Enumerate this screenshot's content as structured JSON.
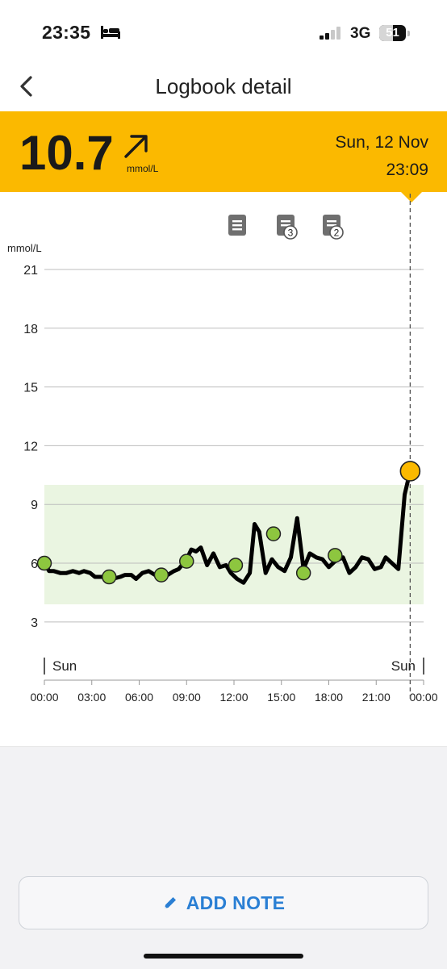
{
  "status_bar": {
    "time": "23:35",
    "network": "3G",
    "battery_level": "51",
    "battery_fraction": 0.51,
    "icons": [
      "bed-icon",
      "cellular-signal-icon",
      "battery-icon"
    ]
  },
  "nav": {
    "back_icon": "chevron-left-icon",
    "title": "Logbook detail"
  },
  "reading": {
    "value": "10.7",
    "unit": "mmol/L",
    "trend_icon": "arrow-up-right-icon",
    "date": "Sun, 12 Nov",
    "time": "23:09",
    "accent_color": "#fbb900"
  },
  "notes": [
    {
      "icon": "note-icon",
      "count": ""
    },
    {
      "icon": "note-icon",
      "count": "3"
    },
    {
      "icon": "note-icon",
      "count": "2"
    }
  ],
  "chart_data": {
    "type": "line",
    "ylabel": "mmol/L",
    "ylim": [
      0,
      22.5
    ],
    "xlim": [
      0,
      24
    ],
    "y_ticks": [
      "3",
      "6",
      "9",
      "12",
      "15",
      "18",
      "21"
    ],
    "x_ticks": [
      "00:00",
      "03:00",
      "06:00",
      "09:00",
      "12:00",
      "15:00",
      "18:00",
      "21:00",
      "00:00"
    ],
    "day_labels": {
      "start": "Sun",
      "end": "Sun"
    },
    "target_range": [
      3.9,
      10.0
    ],
    "target_range_color": "#eaf5e1",
    "line_color": "#000000",
    "current_marker": {
      "x": 23.15,
      "y": 10.7,
      "color": "#fbb900"
    },
    "series": [
      {
        "x": [
          0.0,
          0.3,
          0.6,
          1.0,
          1.4,
          1.8,
          2.2,
          2.5,
          2.9,
          3.2,
          3.6,
          4.0,
          4.3,
          4.8,
          5.1,
          5.5,
          5.8,
          6.2,
          6.6,
          7.0,
          7.4,
          7.8,
          8.2,
          8.5,
          9.0,
          9.3,
          9.6,
          9.9,
          10.3,
          10.7,
          11.1,
          11.5,
          11.8,
          12.2,
          12.6,
          13.0,
          13.3,
          13.6,
          14.0,
          14.4,
          14.8,
          15.2,
          15.6,
          16.0,
          16.4,
          16.8,
          17.2,
          17.6,
          18.0,
          18.4,
          18.9,
          19.3,
          19.7,
          20.1,
          20.5,
          20.9,
          21.3,
          21.6,
          22.0,
          22.4,
          22.8,
          23.15
        ],
        "y": [
          6.0,
          5.6,
          5.6,
          5.5,
          5.5,
          5.6,
          5.5,
          5.6,
          5.5,
          5.3,
          5.3,
          5.3,
          5.2,
          5.3,
          5.4,
          5.4,
          5.2,
          5.5,
          5.6,
          5.4,
          5.6,
          5.4,
          5.6,
          5.7,
          6.2,
          6.7,
          6.6,
          6.8,
          5.9,
          6.5,
          5.8,
          5.9,
          5.5,
          5.2,
          5.0,
          5.5,
          8.0,
          7.6,
          5.5,
          6.2,
          5.8,
          5.6,
          6.3,
          8.3,
          5.7,
          6.5,
          6.3,
          6.2,
          5.8,
          6.1,
          6.3,
          5.5,
          5.8,
          6.3,
          6.2,
          5.7,
          5.8,
          6.3,
          6.0,
          5.7,
          9.5,
          10.7
        ]
      }
    ],
    "scan_points": {
      "color": "#8dc63f",
      "x": [
        0.0,
        4.1,
        7.4,
        9.0,
        12.1,
        14.5,
        16.4,
        18.4
      ],
      "y": [
        6.0,
        5.3,
        5.4,
        6.1,
        5.9,
        7.5,
        5.5,
        6.4
      ]
    }
  },
  "bottom": {
    "add_note_label": "ADD NOTE",
    "add_note_icon": "pencil-icon",
    "accent_color": "#2a7fd4"
  }
}
